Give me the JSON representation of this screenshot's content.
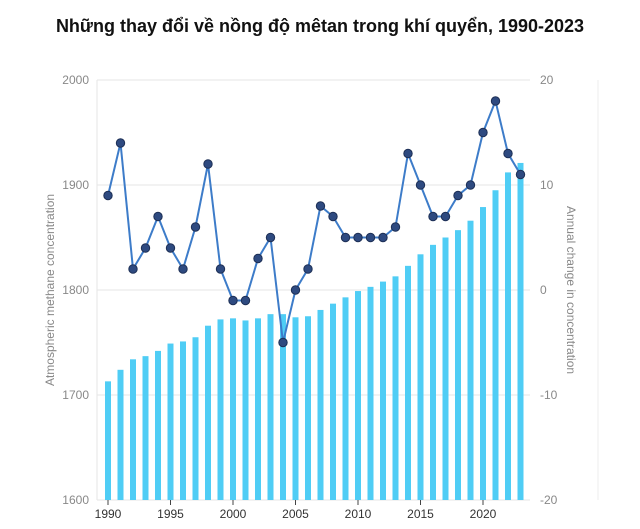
{
  "chart_data": {
    "type": "bar+line",
    "title": "Những thay đổi về nồng độ mêtan trong khí quyển, 1990-2023",
    "ylabel_left": "Atmospheric methane concentration",
    "ylabel_right": "Annual change in concentration",
    "ylim_left": [
      1600,
      2000
    ],
    "ylim_right": [
      -20,
      20
    ],
    "yticks_left": [
      "1600",
      "1700",
      "1800",
      "1900",
      "2000"
    ],
    "yticks_right": [
      "-20",
      "-10",
      "0",
      "10",
      "20"
    ],
    "xticks": [
      "1990",
      "1995",
      "2000",
      "2005",
      "2010",
      "2015",
      "2020"
    ],
    "grid": true,
    "x": [
      1990,
      1991,
      1992,
      1993,
      1994,
      1995,
      1996,
      1997,
      1998,
      1999,
      2000,
      2001,
      2002,
      2003,
      2004,
      2005,
      2006,
      2007,
      2008,
      2009,
      2010,
      2011,
      2012,
      2013,
      2014,
      2015,
      2016,
      2017,
      2018,
      2019,
      2020,
      2021,
      2022,
      2023
    ],
    "series": [
      {
        "type": "bar",
        "axis": "left",
        "color": "#4fcdf5",
        "values": [
          1713,
          1724,
          1734,
          1737,
          1742,
          1749,
          1751,
          1755,
          1766,
          1772,
          1773,
          1771,
          1773,
          1777,
          1777,
          1774,
          1775,
          1781,
          1787,
          1793,
          1799,
          1803,
          1808,
          1813,
          1823,
          1834,
          1843,
          1850,
          1857,
          1866,
          1879,
          1895,
          1912,
          1921
        ]
      },
      {
        "type": "line",
        "axis": "right",
        "color": "#3d7cc9",
        "marker_color": "#2e4a80",
        "values": [
          9,
          14,
          2,
          4,
          7,
          4,
          2,
          6,
          12,
          2,
          -1,
          -1,
          3,
          5,
          -5,
          0,
          2,
          8,
          7,
          5,
          5,
          5,
          5,
          6,
          13,
          10,
          7,
          7,
          9,
          10,
          15,
          18,
          13,
          11
        ]
      }
    ]
  }
}
